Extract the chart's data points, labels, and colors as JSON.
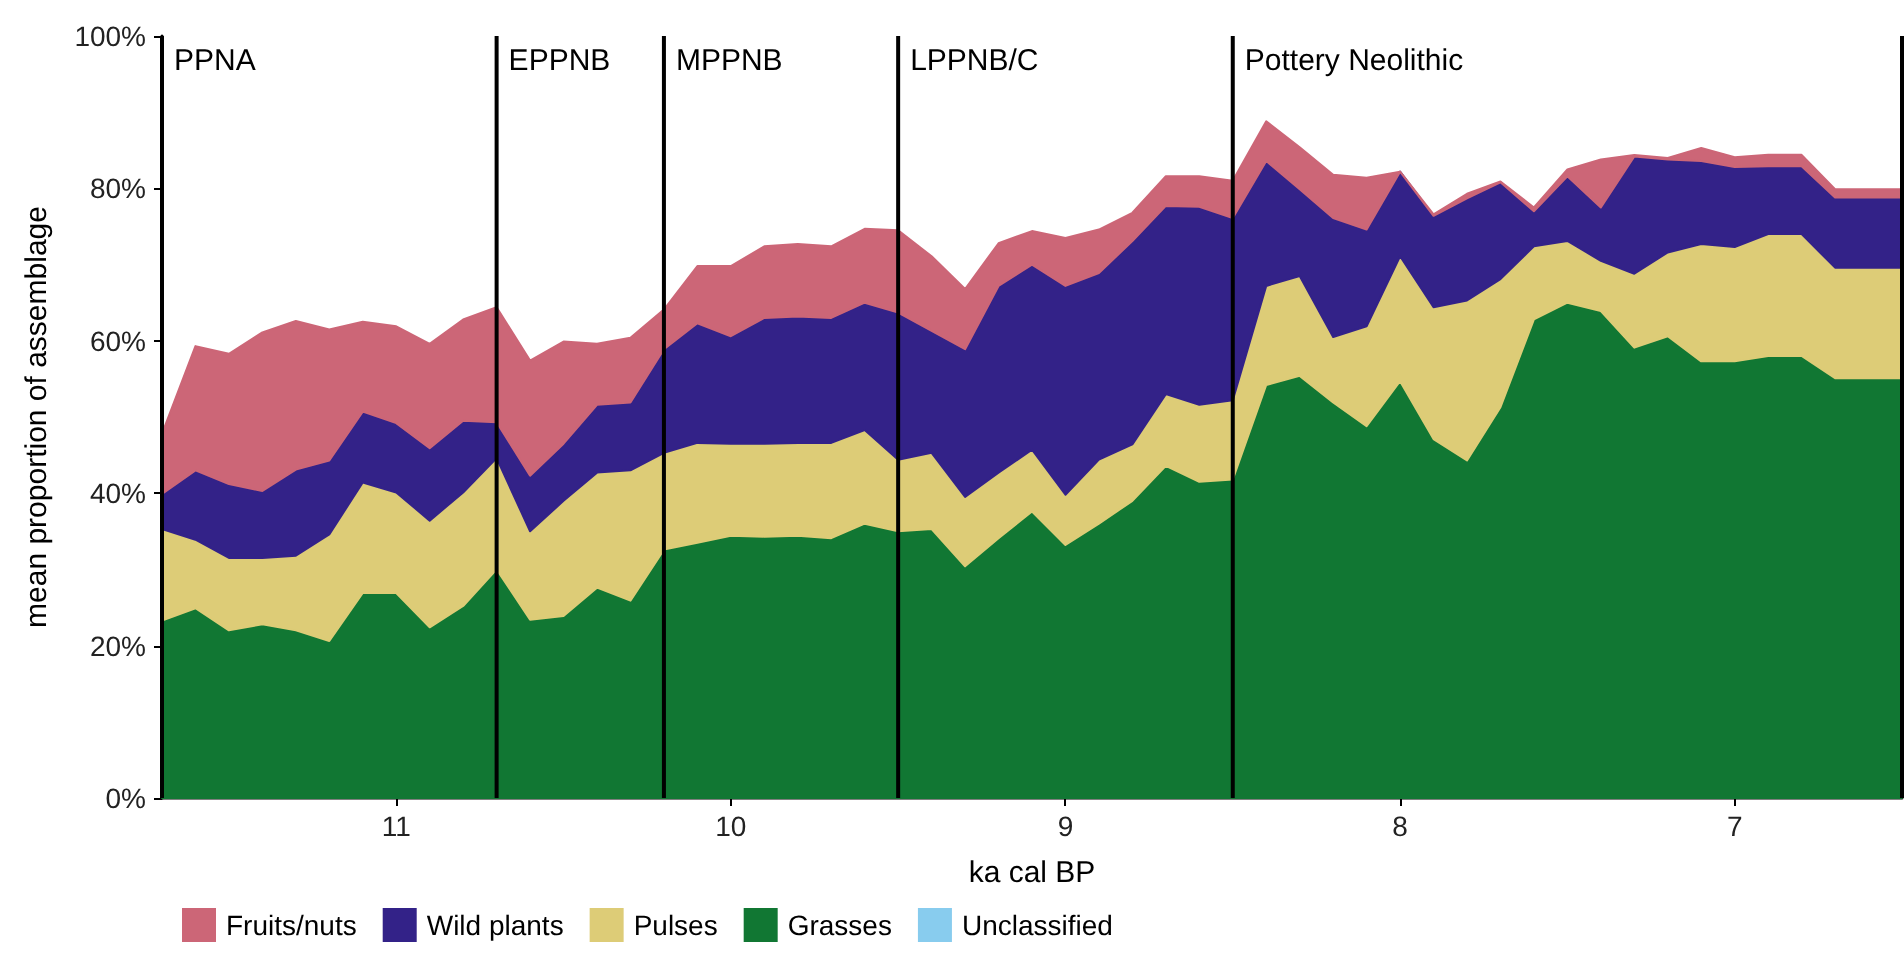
{
  "chart_data": {
    "type": "area",
    "stacked": true,
    "xlabel": "ka cal BP",
    "ylabel": "mean proportion of assemblage",
    "x": [
      11.7,
      11.6,
      11.5,
      11.4,
      11.3,
      11.2,
      11.1,
      11.0,
      10.9,
      10.8,
      10.7,
      10.6,
      10.5,
      10.4,
      10.3,
      10.2,
      10.1,
      10.0,
      9.9,
      9.8,
      9.7,
      9.6,
      9.5,
      9.4,
      9.3,
      9.2,
      9.1,
      9.0,
      8.9,
      8.8,
      8.7,
      8.6,
      8.5,
      8.4,
      8.3,
      8.2,
      8.1,
      8.0,
      7.9,
      7.8,
      7.7,
      7.6,
      7.5,
      7.4,
      7.3,
      7.2,
      7.1,
      7.0,
      6.9,
      6.8,
      6.7,
      6.6,
      6.5
    ],
    "xlim": [
      11.7,
      6.5
    ],
    "xticks": [
      11,
      10,
      9,
      8,
      7
    ],
    "ylim": [
      0,
      100
    ],
    "yticks": [
      {
        "value": 0,
        "label": "0%"
      },
      {
        "value": 20,
        "label": "20%"
      },
      {
        "value": 40,
        "label": "40%"
      },
      {
        "value": 60,
        "label": "60%"
      },
      {
        "value": 80,
        "label": "80%"
      },
      {
        "value": 100,
        "label": "100%"
      }
    ],
    "grid": false,
    "legend": "bottom",
    "series": [
      {
        "name": "Unclassified",
        "color": "#88ccee",
        "values": [
          null,
          null,
          null,
          null,
          null,
          null,
          null,
          null,
          null,
          null,
          null,
          null,
          null,
          null,
          null,
          null,
          null,
          null,
          null,
          null,
          null,
          null,
          null,
          null,
          null,
          null,
          null,
          null,
          null,
          null,
          null,
          null,
          null,
          null,
          null,
          null,
          null,
          null,
          null,
          null,
          null,
          null,
          null,
          null,
          null,
          null,
          null,
          null,
          null,
          null,
          null,
          null,
          null
        ]
      },
      {
        "name": "Grasses",
        "color": "#117733",
        "values": [
          23.3,
          24.9,
          22.0,
          22.8,
          22.0,
          20.6,
          26.9,
          26.9,
          22.4,
          25.2,
          30.0,
          23.4,
          23.9,
          27.6,
          25.9,
          32.6,
          33.5,
          34.4,
          34.3,
          34.4,
          34.1,
          36.0,
          35.0,
          35.3,
          30.4,
          34.1,
          37.6,
          33.2,
          36.0,
          39.0,
          43.6,
          41.5,
          41.8,
          54.2,
          55.4,
          51.9,
          48.8,
          54.7,
          47.1,
          44.3,
          51.3,
          62.8,
          65.0,
          63.9,
          59.1,
          60.6,
          57.3,
          57.3,
          58.0,
          58.0,
          55.1,
          55.1,
          55.1
        ]
      },
      {
        "name": "Pulses",
        "color": "#ddcc77",
        "values": [
          12.0,
          9.0,
          9.5,
          8.7,
          9.8,
          14.0,
          14.5,
          13.2,
          14.0,
          14.9,
          14.6,
          11.6,
          15.1,
          15.1,
          17.1,
          12.7,
          13.1,
          12.1,
          12.2,
          12.2,
          12.5,
          12.3,
          9.4,
          10.0,
          9.1,
          8.6,
          8.1,
          6.6,
          8.4,
          7.4,
          9.4,
          10.1,
          10.4,
          13.0,
          13.1,
          8.6,
          13.1,
          16.4,
          17.3,
          21.0,
          16.8,
          9.6,
          8.1,
          6.6,
          9.7,
          11.0,
          15.4,
          15.0,
          16.0,
          16.0,
          14.5,
          14.5,
          14.5
        ]
      },
      {
        "name": "Wild plants",
        "color": "#332288",
        "values": [
          4.6,
          9.1,
          9.7,
          8.8,
          11.3,
          9.7,
          9.3,
          9.1,
          9.5,
          9.4,
          4.7,
          7.3,
          7.5,
          8.9,
          8.9,
          13.6,
          15.7,
          14.1,
          16.5,
          16.6,
          16.4,
          16.7,
          19.3,
          16.0,
          19.4,
          24.5,
          24.3,
          27.4,
          24.5,
          26.7,
          24.7,
          26.0,
          23.9,
          16.4,
          11.4,
          15.6,
          12.7,
          11.1,
          12.0,
          13.4,
          12.7,
          4.6,
          8.5,
          7.0,
          15.4,
          12.2,
          10.9,
          10.5,
          8.9,
          8.9,
          9.2,
          9.2,
          9.2
        ]
      },
      {
        "name": "Fruits/nuts",
        "color": "#cc6677",
        "values": [
          7.9,
          16.3,
          17.1,
          20.8,
          19.5,
          17.2,
          11.8,
          12.7,
          13.7,
          13.3,
          15.1,
          15.1,
          13.4,
          8.0,
          8.5,
          5.2,
          7.5,
          9.2,
          9.4,
          9.5,
          9.4,
          9.7,
          10.8,
          9.8,
          7.9,
          5.6,
          4.4,
          6.3,
          5.7,
          3.7,
          3.9,
          4.0,
          4.9,
          5.2,
          5.5,
          5.7,
          6.8,
          0,
          0.2,
          0.6,
          0.1,
          0.5,
          0.9,
          6.3,
          0.2,
          0.2,
          1.7,
          1.3,
          1.5,
          1.5,
          1.1,
          1.1,
          1.1
        ]
      }
    ],
    "ref_lines": [
      {
        "axis": "x",
        "value": 11.7,
        "label": "PPNA"
      },
      {
        "axis": "x",
        "value": 10.7,
        "label": "EPPNB"
      },
      {
        "axis": "x",
        "value": 10.2,
        "label": "MPPNB"
      },
      {
        "axis": "x",
        "value": 9.5,
        "label": "LPPNB/C"
      },
      {
        "axis": "x",
        "value": 8.5,
        "label": "Pottery Neolithic"
      },
      {
        "axis": "x",
        "value": 6.5,
        "label": null
      }
    ]
  }
}
